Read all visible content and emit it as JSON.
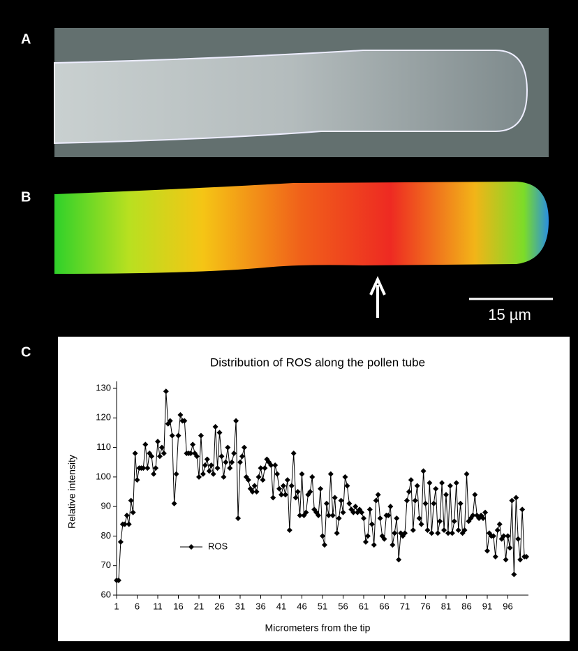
{
  "panels": {
    "labels": [
      "A",
      "B",
      "C"
    ],
    "scale_bar": "15 µm"
  },
  "chart_data": {
    "type": "line",
    "title": "Distribution of ROS along the pollen tube",
    "x_label": "Micrometers from the tip",
    "y_label": "Relative intensity",
    "xlim": [
      1,
      101
    ],
    "xticks": [
      1,
      6,
      11,
      16,
      21,
      26,
      31,
      36,
      41,
      46,
      51,
      56,
      61,
      66,
      71,
      76,
      81,
      86,
      91,
      96
    ],
    "ylim": [
      60,
      130
    ],
    "yticks": [
      60,
      70,
      80,
      90,
      100,
      110,
      120,
      130
    ],
    "x": [
      1,
      1.5,
      2,
      2.5,
      3,
      3.5,
      4,
      4.5,
      5,
      5.5,
      6,
      6.5,
      7,
      7.5,
      8,
      8.5,
      9,
      9.5,
      10,
      10.5,
      11,
      11.5,
      12,
      12.5,
      13,
      13.5,
      14,
      14.5,
      15,
      15.5,
      16,
      16.5,
      17,
      17.5,
      18,
      18.5,
      19,
      19.5,
      20,
      20.5,
      21,
      21.5,
      22,
      22.5,
      23,
      23.5,
      24,
      24.5,
      25,
      25.5,
      26,
      26.5,
      27,
      27.5,
      28,
      28.5,
      29,
      29.5,
      30,
      30.5,
      31,
      31.5,
      32,
      32.5,
      33,
      33.5,
      34,
      34.5,
      35,
      35.5,
      36,
      36.5,
      37,
      37.5,
      38,
      38.5,
      39,
      39.5,
      40,
      40.5,
      41,
      41.5,
      42,
      42.5,
      43,
      43.5,
      44,
      44.5,
      45,
      45.5,
      46,
      46.5,
      47,
      47.5,
      48,
      48.5,
      49,
      49.5,
      50,
      50.5,
      51,
      51.5,
      52,
      52.5,
      53,
      53.5,
      54,
      54.5,
      55,
      55.5,
      56,
      56.5,
      57,
      57.5,
      58,
      58.5,
      59,
      59.5,
      60,
      60.5,
      61,
      61.5,
      62,
      62.5,
      63,
      63.5,
      64,
      64.5,
      65,
      65.5,
      66,
      66.5,
      67,
      67.5,
      68,
      68.5,
      69,
      69.5,
      70,
      70.5,
      71,
      71.5,
      72,
      72.5,
      73,
      73.5,
      74,
      74.5,
      75,
      75.5,
      76,
      76.5,
      77,
      77.5,
      78,
      78.5,
      79,
      79.5,
      80,
      80.5,
      81,
      81.5,
      82,
      82.5,
      83,
      83.5,
      84,
      84.5,
      85,
      85.5,
      86,
      86.5,
      87,
      87.5,
      88,
      88.5,
      89,
      89.5,
      90,
      90.5,
      91,
      91.5,
      92,
      92.5,
      93,
      93.5,
      94,
      94.5,
      95,
      95.5,
      96,
      96.5,
      97,
      97.5,
      98,
      98.5,
      99,
      99.5,
      100,
      100.5
    ],
    "series": [
      {
        "name": "ROS",
        "color": "#000000",
        "values": [
          65,
          65,
          78,
          84,
          84,
          87,
          84,
          92,
          88,
          108,
          99,
          103,
          103,
          103,
          111,
          103,
          108,
          107,
          101,
          103,
          112,
          107,
          110,
          108,
          129,
          118,
          119,
          114,
          91,
          101,
          114,
          121,
          119,
          119,
          108,
          108,
          108,
          111,
          108,
          107,
          100,
          114,
          101,
          104,
          106,
          102,
          104,
          101,
          117,
          103,
          115,
          107,
          100,
          105,
          110,
          103,
          105,
          108,
          119,
          86,
          105,
          107,
          110,
          100,
          99,
          96,
          95,
          97,
          95,
          100,
          103,
          99,
          103,
          106,
          105,
          104,
          93,
          104,
          101,
          96,
          94,
          97,
          94,
          99,
          82,
          97,
          108,
          93,
          95,
          87,
          101,
          87,
          88,
          94,
          95,
          100,
          89,
          88,
          87,
          96,
          80,
          77,
          91,
          87,
          101,
          87,
          93,
          81,
          86,
          92,
          88,
          100,
          97,
          91,
          89,
          88,
          90,
          88,
          89,
          88,
          86,
          78,
          80,
          89,
          84,
          77,
          92,
          94,
          86,
          80,
          79,
          87,
          87,
          90,
          77,
          81,
          86,
          72,
          81,
          80,
          81,
          92,
          95,
          99,
          82,
          92,
          97,
          86,
          84,
          102,
          91,
          82,
          98,
          81,
          91,
          96,
          81,
          85,
          98,
          82,
          94,
          81,
          97,
          81,
          85,
          98,
          82,
          91,
          81,
          82,
          101,
          85,
          86,
          87,
          94,
          87,
          86,
          87,
          86,
          88,
          75,
          81,
          80,
          80,
          73,
          82,
          84,
          79,
          80,
          72,
          80,
          76,
          92,
          67,
          93,
          79,
          72,
          89,
          73,
          73
        ]
      }
    ]
  }
}
